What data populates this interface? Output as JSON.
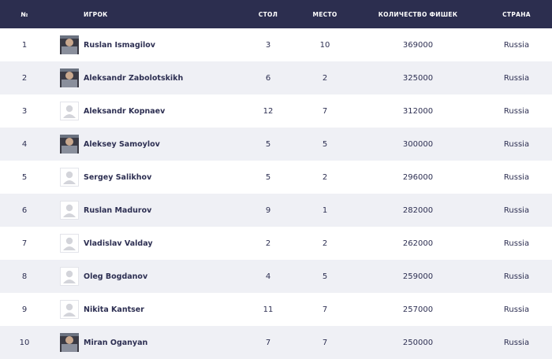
{
  "table": {
    "columns": [
      "№",
      "ИГРОК",
      "СТОЛ",
      "МЕСТО",
      "КОЛИЧЕСТВО ФИШЕК",
      "СТРАНА"
    ],
    "rows": [
      [
        1,
        "Ruslan Ismagilov",
        3,
        10,
        369000,
        "Russia"
      ],
      [
        2,
        "Aleksandr Zabolotskikh",
        6,
        2,
        325000,
        "Russia"
      ],
      [
        3,
        "Aleksandr Kopnaev",
        12,
        7,
        312000,
        "Russia"
      ],
      [
        4,
        "Aleksey Samoylov",
        5,
        5,
        300000,
        "Russia"
      ],
      [
        5,
        "Sergey Salikhov",
        5,
        2,
        296000,
        "Russia"
      ],
      [
        6,
        "Ruslan Madurov",
        9,
        1,
        282000,
        "Russia"
      ],
      [
        7,
        "Vladislav Valday",
        2,
        2,
        262000,
        "Russia"
      ],
      [
        8,
        "Oleg Bogdanov",
        4,
        5,
        259000,
        "Russia"
      ],
      [
        9,
        "Nikita Kantser",
        11,
        7,
        257000,
        "Russia"
      ],
      [
        10,
        "Miran Oganyan",
        7,
        7,
        250000,
        "Russia"
      ]
    ]
  }
}
